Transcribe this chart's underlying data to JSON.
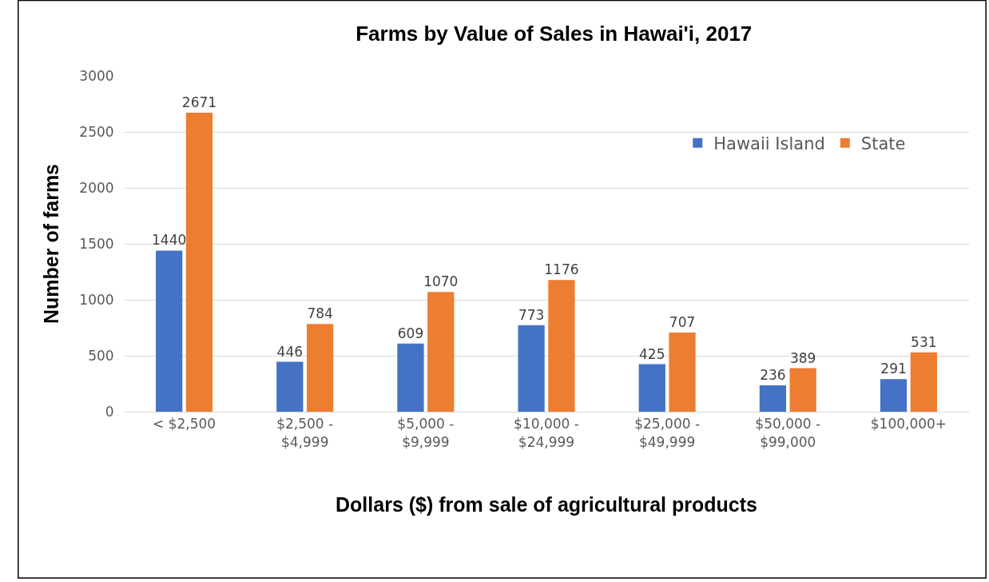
{
  "chart_data": {
    "type": "bar",
    "title": "Farms by Value of Sales in Hawai'i, 2017",
    "xlabel": "Dollars ($) from sale of agricultural products",
    "ylabel": "Number of farms",
    "categories": [
      "< $2,500",
      "$2,500 -\n$4,999",
      "$5,000 -\n$9,999",
      "$10,000 -\n$24,999",
      "$25,000 -\n$49,999",
      "$50,000 -\n$99,000",
      "$100,000+"
    ],
    "series": [
      {
        "name": "Hawaii Island",
        "color": "#4472c4",
        "values": [
          1440,
          446,
          609,
          773,
          425,
          236,
          291
        ]
      },
      {
        "name": "State",
        "color": "#ed7d31",
        "values": [
          2671,
          784,
          1070,
          1176,
          707,
          389,
          531
        ]
      }
    ],
    "ylim": [
      0,
      3000
    ],
    "yticks": [
      0,
      500,
      1000,
      1500,
      2000,
      2500,
      3000
    ],
    "grid": "y",
    "legend": "top right",
    "data_labels": true
  }
}
